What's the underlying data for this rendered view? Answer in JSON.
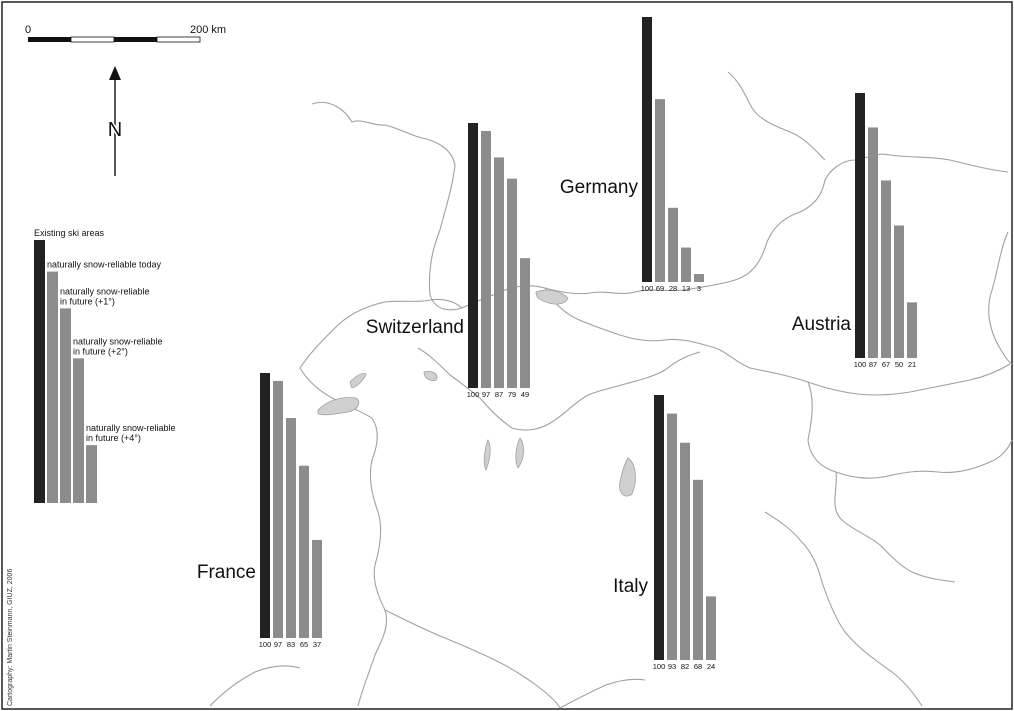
{
  "scale_bar": {
    "start_label": "0",
    "end_label": "200 km"
  },
  "north_label": "N",
  "legend": {
    "items": [
      {
        "lines": [
          "Existing ski areas"
        ],
        "value": 100,
        "color": "#222222"
      },
      {
        "lines": [
          "naturally snow-reliable today"
        ],
        "value": 88,
        "color": "#8c8c8c"
      },
      {
        "lines": [
          "naturally snow-reliable",
          "in future (+1°)"
        ],
        "value": 74,
        "color": "#8c8c8c"
      },
      {
        "lines": [
          "naturally snow-reliable",
          "in future (+2°)"
        ],
        "value": 55,
        "color": "#8c8c8c"
      },
      {
        "lines": [
          "naturally snow-reliable",
          "in future (+4°)"
        ],
        "value": 22,
        "color": "#8c8c8c"
      }
    ]
  },
  "credit": "Cartography: Martin Steinmann, GIUZ, 2006",
  "chart_data": {
    "type": "bar",
    "categories": [
      "Existing ski areas",
      "naturally snow-reliable today",
      "naturally snow-reliable in future (+1°)",
      "naturally snow-reliable in future (+2°)",
      "naturally snow-reliable in future (+4°)"
    ],
    "ylim": [
      0,
      100
    ],
    "series": [
      {
        "name": "Germany",
        "values": [
          100,
          69,
          28,
          13,
          3
        ]
      },
      {
        "name": "Austria",
        "values": [
          100,
          87,
          67,
          50,
          21
        ]
      },
      {
        "name": "Switzerland",
        "values": [
          100,
          97,
          87,
          79,
          49
        ]
      },
      {
        "name": "France",
        "values": [
          100,
          97,
          83,
          65,
          37
        ]
      },
      {
        "name": "Italy",
        "values": [
          100,
          93,
          82,
          68,
          24
        ]
      }
    ]
  },
  "colors": {
    "existing": "#222222",
    "reliable": "#8c8c8c",
    "border": "#a0a0a0",
    "lake": "#d0d0d0"
  }
}
